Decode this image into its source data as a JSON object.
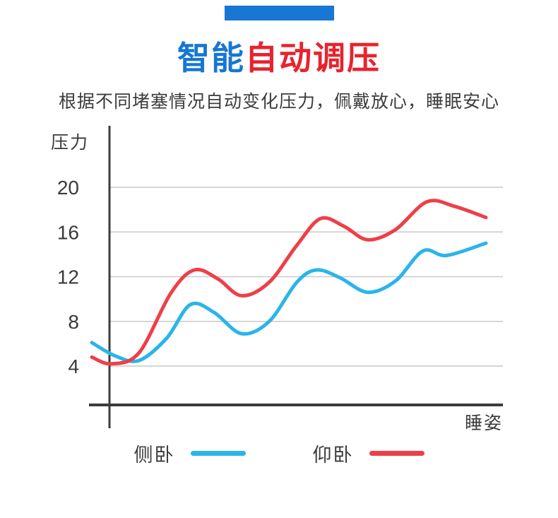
{
  "header": {
    "accent_bar_color": "#1777d3",
    "title_part1": "智能",
    "title_part2": "自动调压",
    "title_color1": "#1677d2",
    "title_color2": "#e8232d",
    "subtitle": "根据不同堵塞情况自动变化压力，佩戴放心，睡眠安心"
  },
  "chart_data": {
    "type": "line",
    "title": "",
    "ylabel": "压力",
    "xlabel": "睡姿",
    "yticks": [
      4,
      8,
      12,
      16,
      20
    ],
    "ylim": [
      0,
      23
    ],
    "grid": true,
    "grid_color": "#c9c9c9",
    "axis_color": "#3c3c3c",
    "text_color": "#3a3a3a",
    "legend_position": "bottom",
    "series": [
      {
        "name": "侧卧",
        "color": "#2ab5ea",
        "x": [
          0,
          6,
          12,
          19,
          25,
          31,
          38,
          45,
          52,
          57,
          63,
          70,
          77,
          84,
          90,
          100
        ],
        "values": [
          6.1,
          4.9,
          4.5,
          6.5,
          9.5,
          8.8,
          6.9,
          8.0,
          11.5,
          12.6,
          11.9,
          10.6,
          11.6,
          14.3,
          13.9,
          15.0
        ]
      },
      {
        "name": "仰卧",
        "color": "#ee3f48",
        "x": [
          0,
          5,
          12,
          20,
          26,
          32,
          38,
          45,
          52,
          58,
          64,
          70,
          77,
          85,
          92,
          100
        ],
        "values": [
          4.8,
          4.2,
          5.2,
          10.5,
          12.6,
          11.8,
          10.3,
          11.5,
          14.8,
          17.2,
          16.5,
          15.3,
          16.2,
          18.7,
          18.3,
          17.3
        ]
      }
    ]
  }
}
